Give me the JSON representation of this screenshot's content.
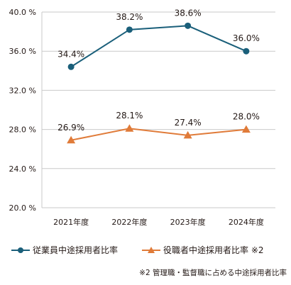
{
  "chart_data": {
    "type": "line",
    "categories": [
      "2021年度",
      "2022年度",
      "2023年度",
      "2024年度"
    ],
    "series": [
      {
        "name": "従業員中途採用者比率",
        "values": [
          34.4,
          38.2,
          38.6,
          36.0
        ],
        "labels": [
          "34.4%",
          "38.2%",
          "38.6%",
          "36.0%"
        ],
        "color": "#1a5f7a",
        "marker": "circle"
      },
      {
        "name": "役職者中途採用者比率 ※2",
        "values": [
          26.9,
          28.1,
          27.4,
          28.0
        ],
        "labels": [
          "26.9%",
          "28.1%",
          "27.4%",
          "28.0%"
        ],
        "color": "#e07b39",
        "marker": "triangle"
      }
    ],
    "ylim": [
      20.0,
      40.0
    ],
    "yticks": [
      20.0,
      24.0,
      28.0,
      32.0,
      36.0,
      40.0
    ],
    "ytick_labels": [
      "20.0 %",
      "24.0 %",
      "28.0 %",
      "32.0 %",
      "36.0 %",
      "40.0 %"
    ],
    "grid": "horizontal",
    "legend_position": "bottom"
  },
  "footnote": "※2 管理職・監督職に占める中途採用者比率"
}
